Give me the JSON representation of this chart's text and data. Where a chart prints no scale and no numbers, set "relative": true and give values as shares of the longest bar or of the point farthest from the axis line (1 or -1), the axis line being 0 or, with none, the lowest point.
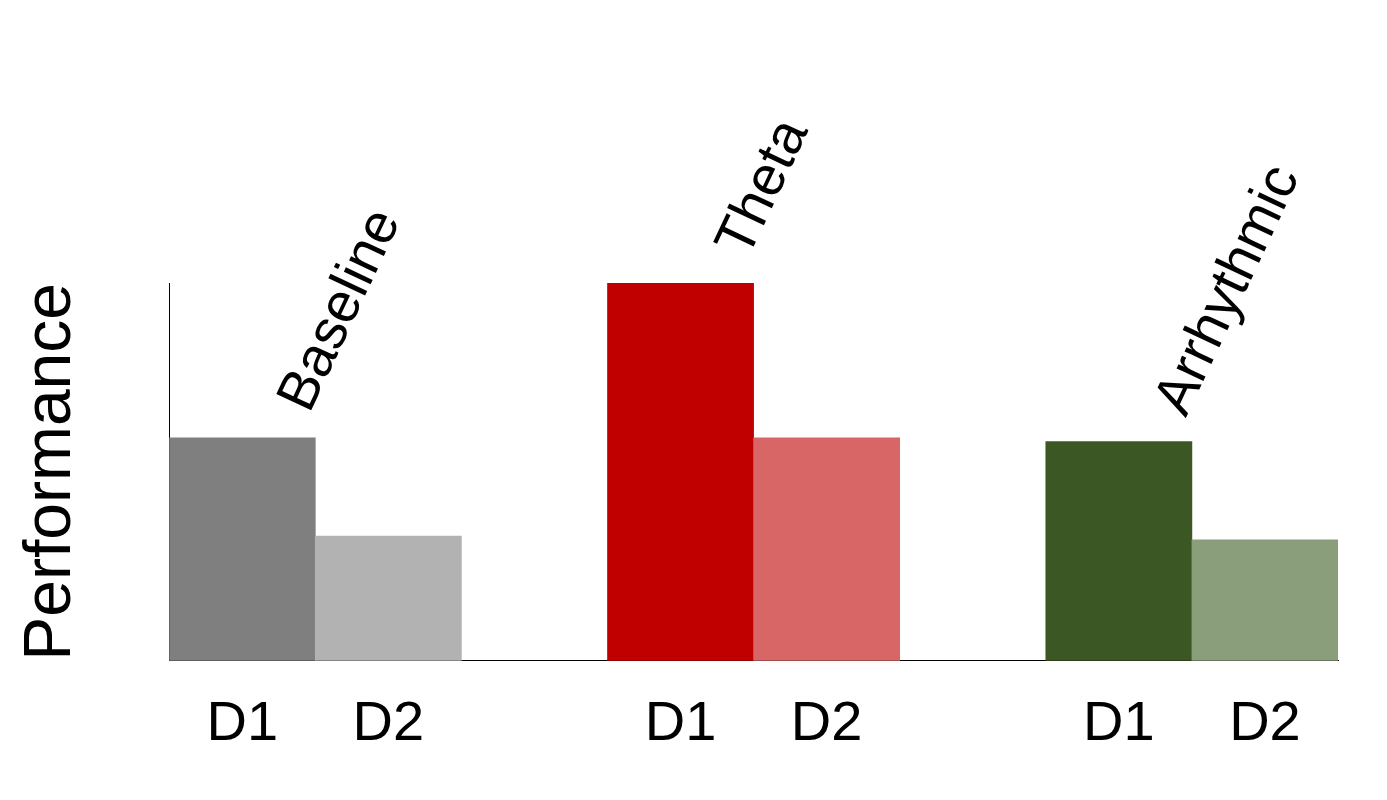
{
  "chart_data": {
    "type": "bar",
    "relative": true,
    "ylabel": "Performance",
    "categories": [
      "D1",
      "D2",
      null,
      "D1",
      "D2",
      null,
      "D1",
      "D2"
    ],
    "values": [
      0.59,
      0.33,
      null,
      1,
      0.59,
      null,
      0.58,
      0.32
    ],
    "colors": [
      "#7f7f7f",
      "#b2b2b2",
      null,
      "#c00000",
      "#d86666",
      null,
      "#3b5723",
      "#8a9e7c"
    ],
    "annotations": [
      "Baseline",
      "Theta",
      "Arrhythmic"
    ],
    "grid": false,
    "legend": false
  }
}
